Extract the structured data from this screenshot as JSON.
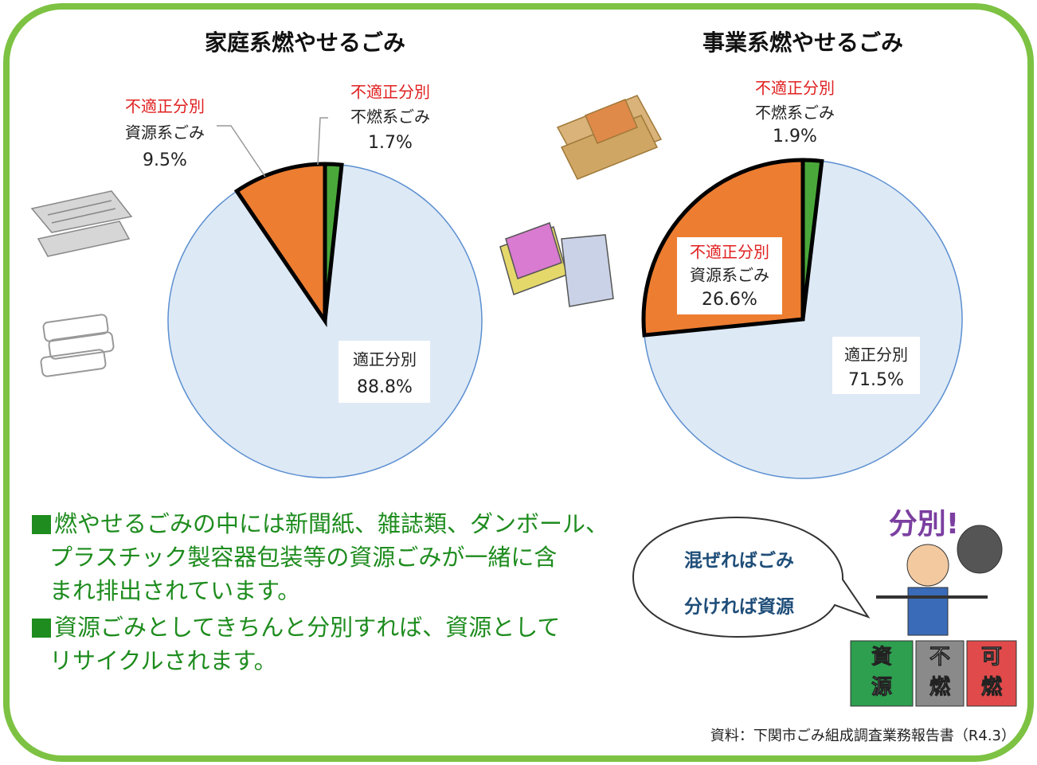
{
  "chart_data": [
    {
      "type": "pie",
      "title": "家庭系燃やせるごみ",
      "categories": [
        "不燃系ごみ",
        "適正分別",
        "資源系ごみ"
      ],
      "category_tags": [
        "不適正分別",
        null,
        "不適正分別"
      ],
      "values": [
        1.7,
        88.8,
        9.5
      ],
      "value_labels": [
        "1.7%",
        "88.8%",
        "9.5%"
      ],
      "colors": [
        "#4aa83a",
        "#dde9f5",
        "#ed7d31"
      ],
      "outlined": [
        true,
        false,
        true
      ]
    },
    {
      "type": "pie",
      "title": "事業系燃やせるごみ",
      "categories": [
        "不燃系ごみ",
        "適正分別",
        "資源系ごみ"
      ],
      "category_tags": [
        "不適正分別",
        null,
        "不適正分別"
      ],
      "values": [
        1.9,
        71.5,
        26.6
      ],
      "value_labels": [
        "1.9%",
        "71.5%",
        "26.6%"
      ],
      "colors": [
        "#4aa83a",
        "#dde9f5",
        "#ed7d31"
      ],
      "outlined": [
        true,
        false,
        true
      ]
    }
  ],
  "notes": [
    [
      "燃やせるごみの中には新聞紙、雑誌類、ダンボール、",
      "プラスチック製容器包装等の資源ごみが一緒に含",
      "まれ排出されています。"
    ],
    [
      "資源ごみとしてきちんと分別すれば、資源として",
      "リサイクルされます。"
    ]
  ],
  "bubble": [
    "混ぜればごみ",
    "分ければ資源"
  ],
  "illustration": {
    "title": "分別!",
    "bins": [
      [
        "資",
        "源"
      ],
      [
        "不",
        "燃"
      ],
      [
        "可",
        "燃"
      ]
    ]
  },
  "source": "資料：下関市ごみ組成調査業務報告書（R4.3）"
}
